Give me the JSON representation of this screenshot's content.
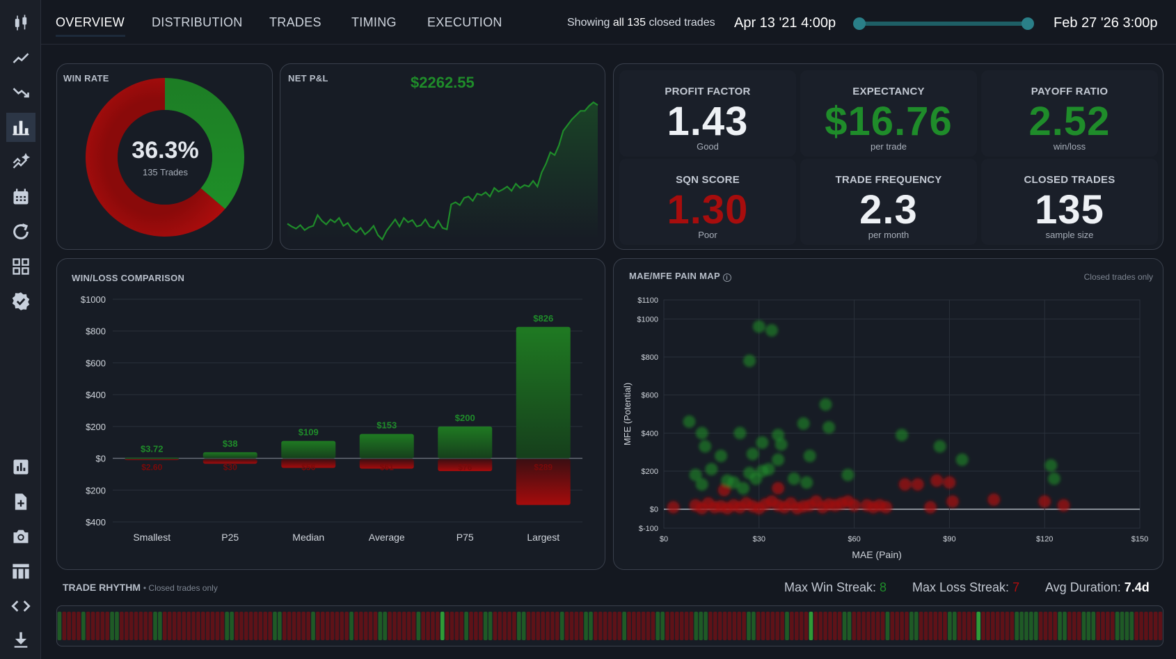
{
  "sidebar": {
    "top_icons": [
      "candlestick-icon",
      "trend-up-icon",
      "trend-down-icon",
      "bar-chart-icon",
      "sparkle-chart-icon",
      "calendar-icon",
      "refresh-icon",
      "grid-icon",
      "verified-badge-icon"
    ],
    "bottom_icons": [
      "report-icon",
      "add-file-icon",
      "camera-icon",
      "table-icon",
      "code-icon",
      "download-icon"
    ],
    "active": "bar-chart-icon"
  },
  "tabs": [
    "OVERVIEW",
    "DISTRIBUTION",
    "TRADES",
    "TIMING",
    "EXECUTION"
  ],
  "active_tab": "OVERVIEW",
  "range": {
    "showing_prefix": "Showing",
    "showing_bold": "all 135",
    "showing_suffix": "closed trades",
    "start_date": "Apr 13 '21 4:00p",
    "end_date": "Feb 27 '26 3:00p"
  },
  "win_rate": {
    "title": "WIN RATE",
    "value": "36.3%",
    "sub": "135 Trades",
    "fraction": 0.363
  },
  "net_pnl": {
    "title": "NET P&L",
    "value": "$2262.55",
    "series": [
      0,
      -40,
      -70,
      -20,
      -90,
      -50,
      -30,
      120,
      40,
      -10,
      60,
      20,
      80,
      -30,
      10,
      -80,
      -120,
      -60,
      -150,
      -100,
      -30,
      -160,
      -220,
      -100,
      -20,
      60,
      -40,
      80,
      20,
      50,
      -40,
      -20,
      60,
      -40,
      -60,
      40,
      -60,
      -80,
      270,
      300,
      260,
      360,
      380,
      320,
      420,
      400,
      440,
      380,
      500,
      450,
      480,
      520,
      460,
      560,
      500,
      540,
      520,
      600,
      520,
      720,
      840,
      1000,
      960,
      1100,
      1300,
      1380,
      1460,
      1520,
      1580,
      1580,
      1650,
      1700,
      1660
    ]
  },
  "kpis": [
    {
      "label": "PROFIT FACTOR",
      "value": "1.43",
      "sub": "Good",
      "color": "#eef1f5"
    },
    {
      "label": "EXPECTANCY",
      "value": "$16.76",
      "sub": "per trade",
      "color": "#1f8c2a"
    },
    {
      "label": "PAYOFF RATIO",
      "value": "2.52",
      "sub": "win/loss",
      "color": "#1f8c2a"
    },
    {
      "label": "SQN SCORE",
      "value": "1.30",
      "sub": "Poor",
      "color": "#a70d0d"
    },
    {
      "label": "TRADE FREQUENCY",
      "value": "2.3",
      "sub": "per month",
      "color": "#eef1f5"
    },
    {
      "label": "CLOSED TRADES",
      "value": "135",
      "sub": "sample size",
      "color": "#eef1f5"
    }
  ],
  "winloss": {
    "title": "WIN/LOSS COMPARISON",
    "chart_data": {
      "type": "bar",
      "categories": [
        "Smallest",
        "P25",
        "Median",
        "Average",
        "P75",
        "Largest"
      ],
      "series": [
        {
          "values": [
            3.72,
            38,
            109,
            153,
            200,
            826
          ],
          "labels": [
            "$3.72",
            "$38",
            "$109",
            "$153",
            "$200",
            "$826"
          ]
        },
        {
          "values": [
            -2.6,
            -30,
            -56,
            -61,
            -76,
            -289
          ],
          "labels": [
            "$2.60",
            "$30",
            "$56",
            "$61",
            "$76",
            "$289"
          ]
        }
      ],
      "yticks": [
        1000,
        800,
        600,
        400,
        200,
        0,
        -200,
        -400
      ],
      "ytick_labels": [
        "$1000",
        "$800",
        "$600",
        "$400",
        "$200",
        "$0",
        "$200",
        "$400"
      ],
      "ylim": [
        -400,
        1000
      ]
    }
  },
  "painmap": {
    "title": "MAE/MFE PAIN MAP",
    "note": "Closed trades only",
    "chart_data": {
      "type": "scatter",
      "xlabel": "MAE (Pain)",
      "ylabel": "MFE (Potential)",
      "xlim": [
        0,
        150
      ],
      "ylim": [
        -100,
        1100
      ],
      "xticks": [
        "$0",
        "$30",
        "$60",
        "$90",
        "$120",
        "$150"
      ],
      "yticks": [
        "$1100",
        "$1000",
        "$800",
        "$600",
        "$400",
        "$200",
        "$0",
        "$-100"
      ],
      "ytick_values": [
        1100,
        1000,
        800,
        600,
        400,
        200,
        0,
        -100
      ],
      "win_points": [
        [
          30,
          960
        ],
        [
          34,
          940
        ],
        [
          27,
          780
        ],
        [
          8,
          460
        ],
        [
          12,
          400
        ],
        [
          13,
          330
        ],
        [
          18,
          280
        ],
        [
          24,
          400
        ],
        [
          28,
          290
        ],
        [
          31,
          350
        ],
        [
          36,
          390
        ],
        [
          37,
          340
        ],
        [
          44,
          450
        ],
        [
          46,
          280
        ],
        [
          51,
          550
        ],
        [
          52,
          430
        ],
        [
          10,
          180
        ],
        [
          12,
          130
        ],
        [
          15,
          210
        ],
        [
          20,
          150
        ],
        [
          22,
          140
        ],
        [
          25,
          110
        ],
        [
          27,
          190
        ],
        [
          29,
          160
        ],
        [
          31,
          200
        ],
        [
          33,
          210
        ],
        [
          36,
          260
        ],
        [
          41,
          160
        ],
        [
          45,
          140
        ],
        [
          58,
          180
        ],
        [
          75,
          390
        ],
        [
          87,
          330
        ],
        [
          94,
          260
        ],
        [
          122,
          230
        ],
        [
          123,
          160
        ]
      ],
      "loss_points": [
        [
          3,
          10
        ],
        [
          10,
          20
        ],
        [
          12,
          5
        ],
        [
          14,
          30
        ],
        [
          16,
          10
        ],
        [
          18,
          15
        ],
        [
          20,
          5
        ],
        [
          22,
          20
        ],
        [
          24,
          10
        ],
        [
          26,
          30
        ],
        [
          28,
          15
        ],
        [
          30,
          5
        ],
        [
          32,
          25
        ],
        [
          34,
          40
        ],
        [
          36,
          20
        ],
        [
          38,
          10
        ],
        [
          40,
          30
        ],
        [
          42,
          5
        ],
        [
          44,
          15
        ],
        [
          46,
          20
        ],
        [
          48,
          40
        ],
        [
          50,
          10
        ],
        [
          52,
          25
        ],
        [
          54,
          20
        ],
        [
          56,
          30
        ],
        [
          58,
          40
        ],
        [
          60,
          20
        ],
        [
          64,
          20
        ],
        [
          66,
          10
        ],
        [
          68,
          20
        ],
        [
          70,
          10
        ],
        [
          76,
          130
        ],
        [
          80,
          130
        ],
        [
          84,
          10
        ],
        [
          86,
          150
        ],
        [
          90,
          140
        ],
        [
          91,
          40
        ],
        [
          104,
          50
        ],
        [
          120,
          40
        ],
        [
          126,
          20
        ],
        [
          36,
          110
        ],
        [
          19,
          100
        ]
      ]
    }
  },
  "rhythm": {
    "title": "TRADE RHYTHM",
    "note": "• Closed trades only",
    "max_win_label": "Max Win Streak:",
    "max_win": "8",
    "max_loss_label": "Max Loss Streak:",
    "max_loss": "7",
    "avg_dur_label": "Avg Duration:",
    "avg_dur": "7.4d",
    "sequence": "WLLLLWLLLLLWWLLLLLLLWWLLLLLLLLLLLLLWWLLLLLLLLWWLLLLLLWLLLLLLLWLLLLLWWLLLLLLWLLLLWLLLLWLLLWWLLLLLWWLLLLLLLWLLLLWWLLLLLLWLLLLLLWWLLLLLLWWWLLLLLLLLWWLLLLLLWLLLLWLLLLLLWWLLLLLLLWLLLLWWLLLLLLWWLLLLWLLLLLLLWWWWWLLLLWWLLLWWWLLLLWWWWLLLLLL"
  }
}
